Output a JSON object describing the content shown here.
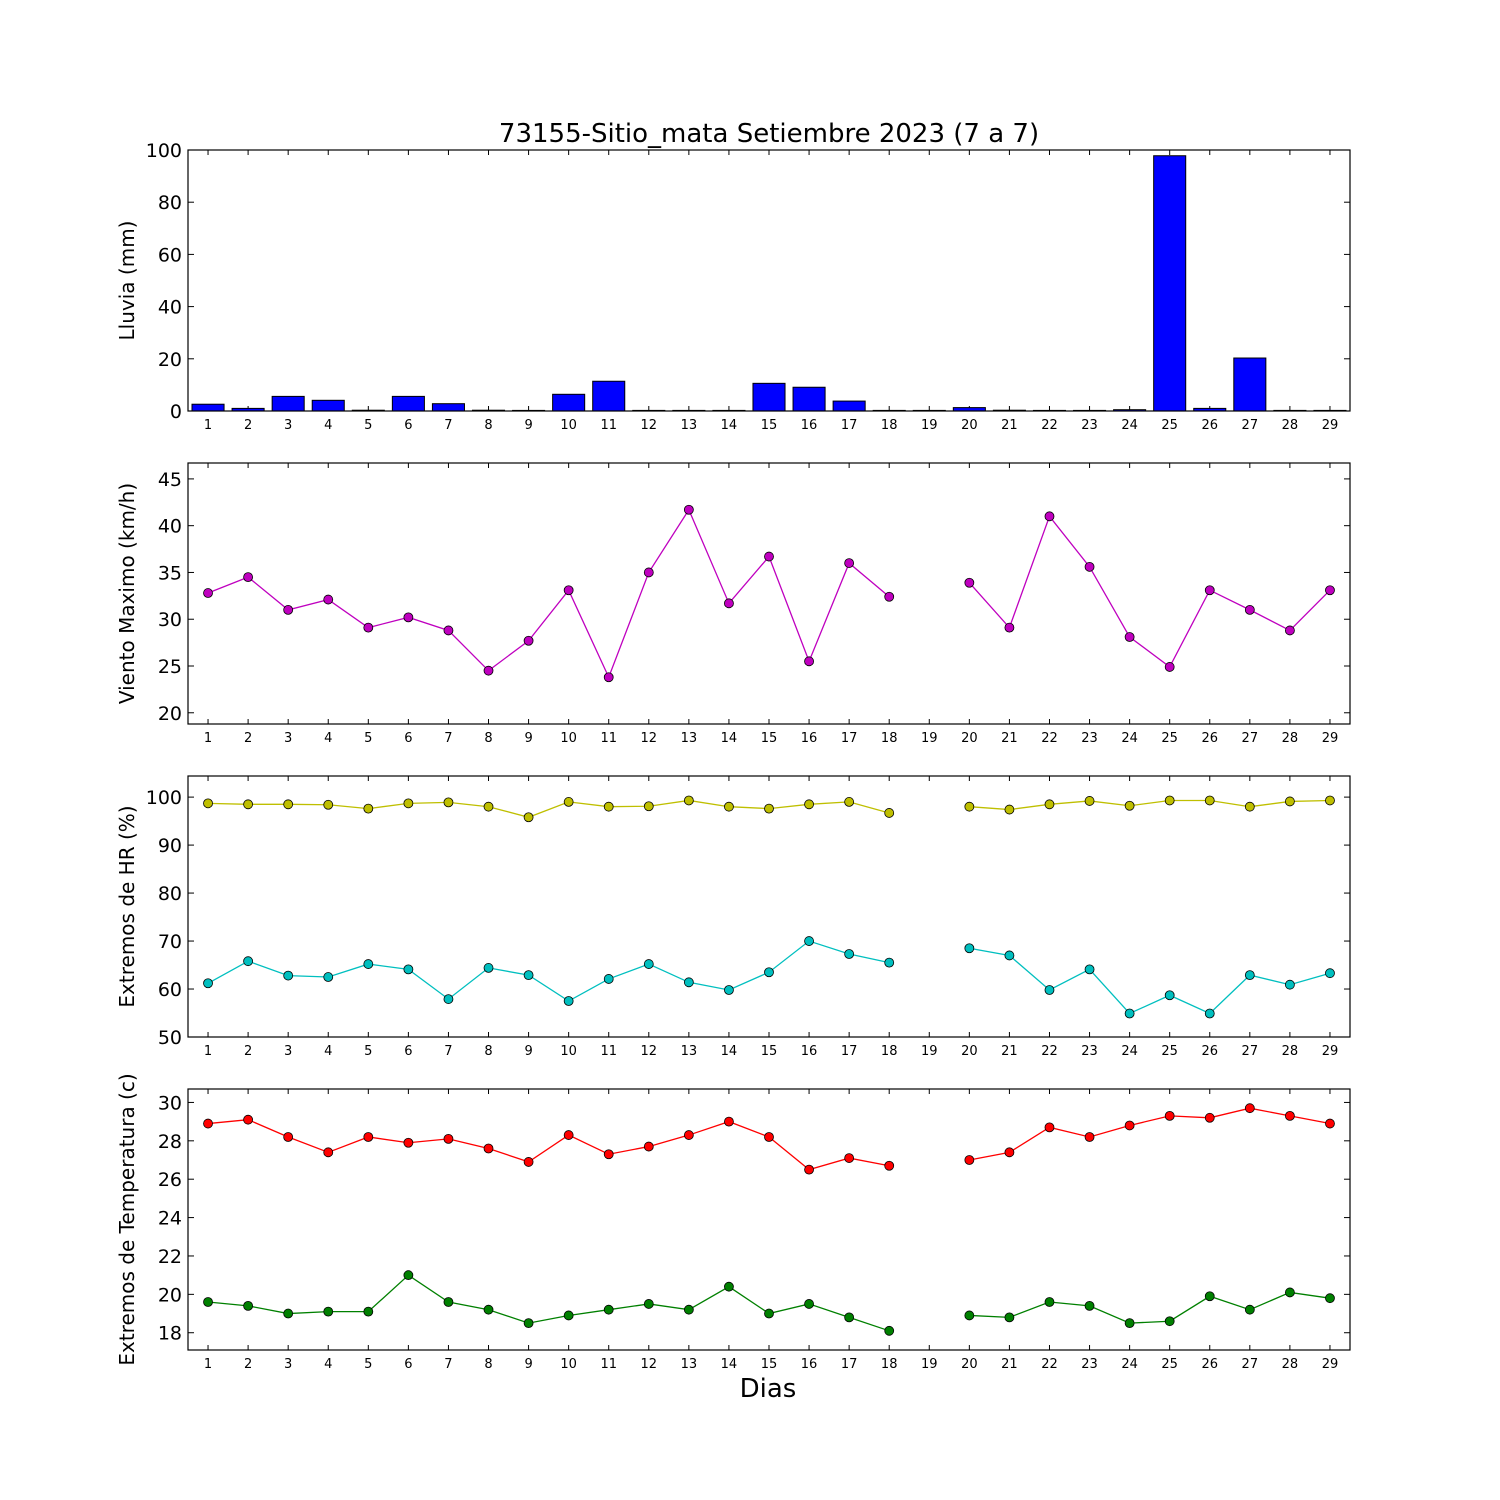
{
  "title": "73155-Sitio_mata Setiembre 2023  (7 a 7)",
  "xlabel": "Dias",
  "chart_data": [
    {
      "type": "bar",
      "ylabel": "Lluvia (mm)",
      "ylim": [
        0,
        100
      ],
      "yticks": [
        0,
        20,
        40,
        60,
        80,
        100
      ],
      "x": [
        1,
        2,
        3,
        4,
        5,
        6,
        7,
        8,
        9,
        10,
        11,
        12,
        13,
        14,
        15,
        16,
        17,
        18,
        19,
        20,
        21,
        22,
        23,
        24,
        25,
        26,
        27,
        28,
        29
      ],
      "series": [
        {
          "color": "#0000ff",
          "values": [
            2.6,
            1.0,
            5.6,
            4.1,
            0.3,
            5.6,
            2.8,
            0.3,
            0,
            6.4,
            11.4,
            0,
            0,
            0,
            10.6,
            9.1,
            3.8,
            0,
            0,
            1.3,
            0.3,
            0,
            0,
            0.5,
            97.8,
            1.0,
            20.3,
            0,
            0
          ]
        }
      ]
    },
    {
      "type": "line",
      "ylabel": "Viento Maximo (km/h)",
      "ylim": [
        18.8,
        46.7
      ],
      "yticks": [
        20,
        25,
        30,
        35,
        40,
        45
      ],
      "x": [
        1,
        2,
        3,
        4,
        5,
        6,
        7,
        8,
        9,
        10,
        11,
        12,
        13,
        14,
        15,
        16,
        17,
        18,
        19,
        20,
        21,
        22,
        23,
        24,
        25,
        26,
        27,
        28,
        29
      ],
      "series": [
        {
          "color": "#bf00bf",
          "values": [
            32.8,
            34.5,
            31.0,
            32.1,
            29.1,
            30.2,
            28.8,
            24.5,
            27.7,
            33.1,
            23.8,
            35.0,
            41.7,
            31.7,
            36.7,
            25.5,
            36.0,
            32.4,
            null,
            33.9,
            29.1,
            41.0,
            35.6,
            28.1,
            24.9,
            33.1,
            31.0,
            28.8,
            33.1
          ]
        }
      ]
    },
    {
      "type": "line",
      "ylabel": "Extremos de HR (%)",
      "ylim": [
        50,
        104.4
      ],
      "yticks": [
        50,
        60,
        70,
        80,
        90,
        100
      ],
      "x": [
        1,
        2,
        3,
        4,
        5,
        6,
        7,
        8,
        9,
        10,
        11,
        12,
        13,
        14,
        15,
        16,
        17,
        18,
        19,
        20,
        21,
        22,
        23,
        24,
        25,
        26,
        27,
        28,
        29
      ],
      "series": [
        {
          "color": "#bfbf00",
          "values": [
            98.7,
            98.5,
            98.5,
            98.4,
            97.6,
            98.7,
            98.9,
            98.0,
            95.8,
            99.0,
            98.0,
            98.1,
            99.3,
            98.0,
            97.6,
            98.5,
            99.0,
            96.7,
            null,
            98.0,
            97.4,
            98.5,
            99.2,
            98.2,
            99.3,
            99.3,
            98.0,
            99.1,
            99.3
          ]
        },
        {
          "color": "#00bfbf",
          "values": [
            61.2,
            65.8,
            62.8,
            62.5,
            65.2,
            64.1,
            57.9,
            64.4,
            62.9,
            57.5,
            62.1,
            65.2,
            61.4,
            59.8,
            63.5,
            70.0,
            67.3,
            65.5,
            null,
            68.5,
            67.0,
            59.8,
            64.1,
            54.9,
            58.7,
            54.9,
            62.9,
            60.9,
            63.3
          ]
        }
      ]
    },
    {
      "type": "line",
      "ylabel": "Extremos de Temperatura (c)",
      "ylim": [
        17.1,
        30.7
      ],
      "yticks": [
        18,
        20,
        22,
        24,
        26,
        28,
        30
      ],
      "x": [
        1,
        2,
        3,
        4,
        5,
        6,
        7,
        8,
        9,
        10,
        11,
        12,
        13,
        14,
        15,
        16,
        17,
        18,
        19,
        20,
        21,
        22,
        23,
        24,
        25,
        26,
        27,
        28,
        29
      ],
      "series": [
        {
          "color": "#ff0000",
          "values": [
            28.9,
            29.1,
            28.2,
            27.4,
            28.2,
            27.9,
            28.1,
            27.6,
            26.9,
            28.3,
            27.3,
            27.7,
            28.3,
            29.0,
            28.2,
            26.5,
            27.1,
            26.7,
            null,
            27.0,
            27.4,
            28.7,
            28.2,
            28.8,
            29.3,
            29.2,
            29.7,
            29.3,
            28.9
          ]
        },
        {
          "color": "#008000",
          "values": [
            19.6,
            19.4,
            19.0,
            19.1,
            19.1,
            21.0,
            19.6,
            19.2,
            18.5,
            18.9,
            19.2,
            19.5,
            19.2,
            20.4,
            19.0,
            19.5,
            18.8,
            18.1,
            null,
            18.9,
            18.8,
            19.6,
            19.4,
            18.5,
            18.6,
            19.9,
            19.2,
            20.1,
            19.8
          ]
        }
      ]
    }
  ]
}
